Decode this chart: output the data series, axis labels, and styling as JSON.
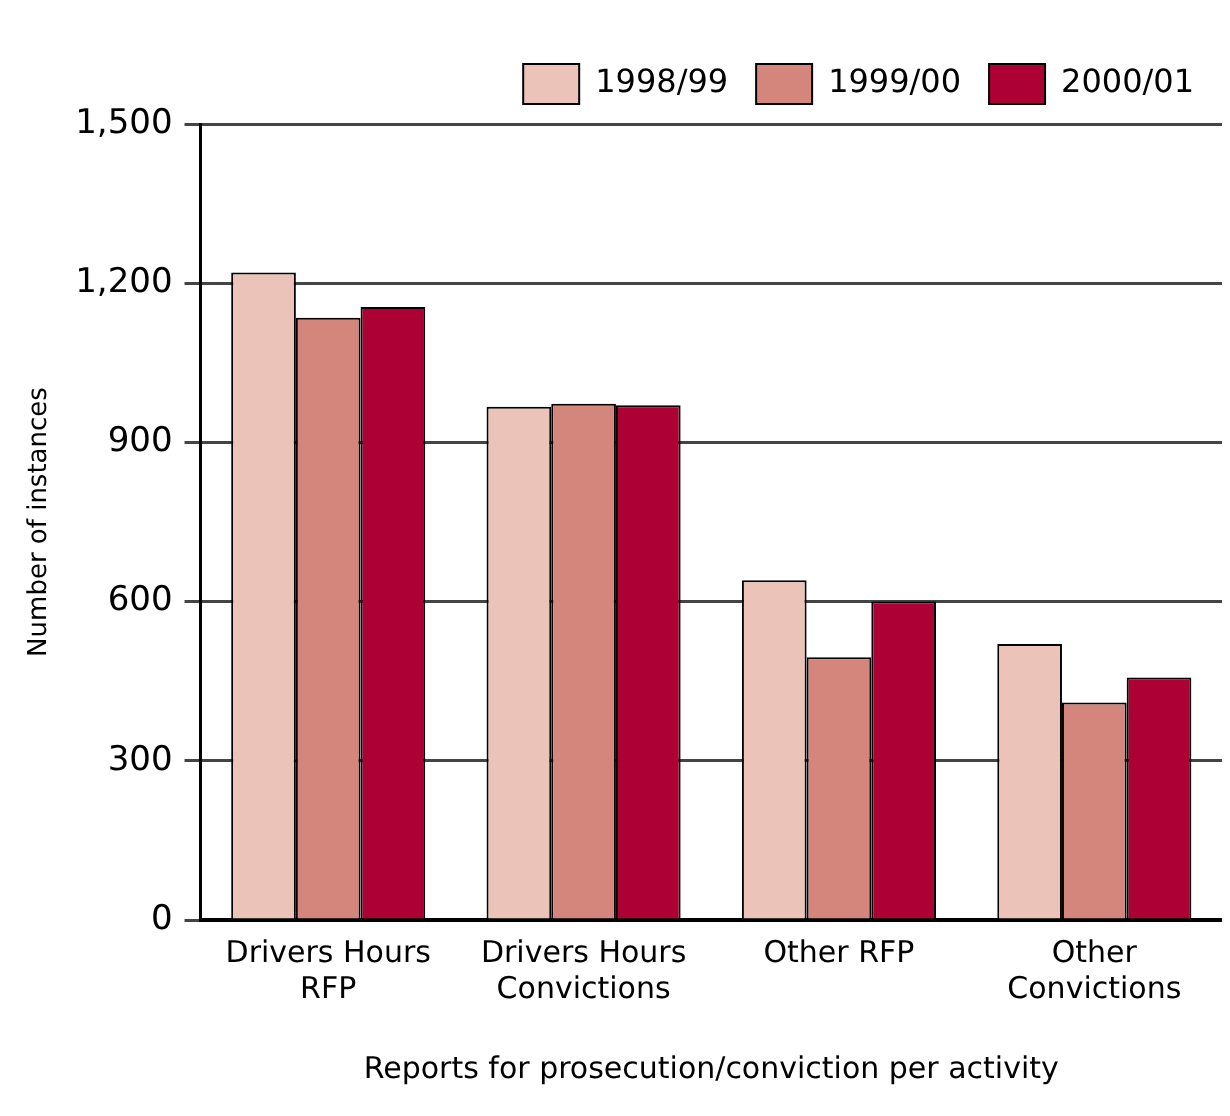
{
  "chart_data": {
    "type": "bar",
    "xlabel": "Reports for prosecution/conviction per activity",
    "ylabel": "Number of instances",
    "categories": [
      "Drivers Hours RFP",
      "Drivers Hours Convictions",
      "Other RFP",
      "Other Convictions"
    ],
    "series": [
      {
        "name": "1998/99",
        "color": "#ebc3b9",
        "values": [
          1220,
          967,
          640,
          520
        ]
      },
      {
        "name": "1999/00",
        "color": "#d4867c",
        "values": [
          1135,
          973,
          495,
          410
        ]
      },
      {
        "name": "2000/01",
        "color": "#ad0034",
        "values": [
          1155,
          970,
          600,
          457
        ]
      }
    ],
    "ylim": [
      0,
      1500
    ],
    "yticks": [
      {
        "value": 0,
        "label": "0"
      },
      {
        "value": 300,
        "label": "300"
      },
      {
        "value": 600,
        "label": "600"
      },
      {
        "value": 900,
        "label": "900"
      },
      {
        "value": 1200,
        "label": "1,200"
      },
      {
        "value": 1500,
        "label": "1,500"
      }
    ],
    "grid": "y",
    "legend": "top right"
  }
}
